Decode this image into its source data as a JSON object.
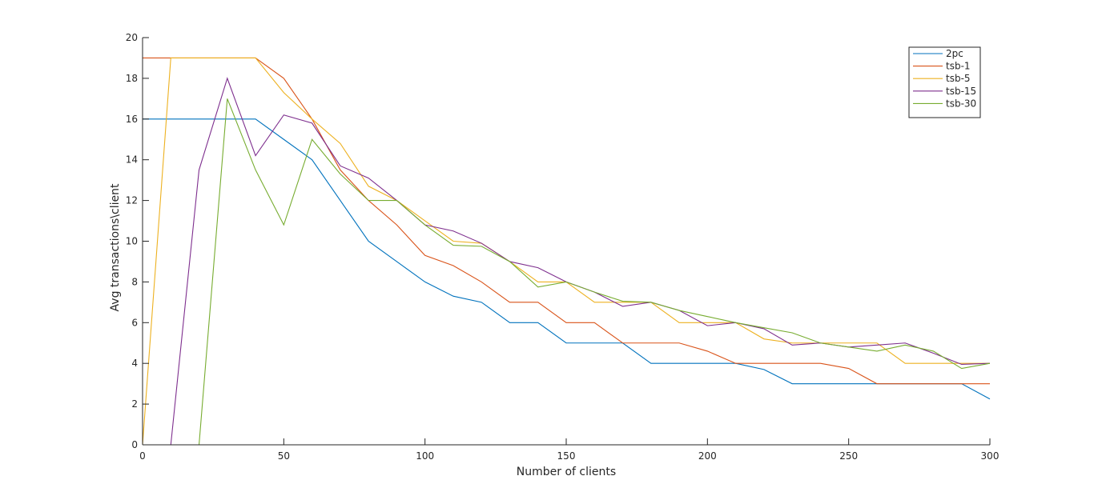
{
  "chart_data": {
    "type": "line",
    "title": "",
    "xlabel": "Number of clients",
    "ylabel": "Avg transactions\\client",
    "xlim": [
      0,
      300
    ],
    "ylim": [
      0,
      20
    ],
    "xticks": [
      0,
      50,
      100,
      150,
      200,
      250,
      300
    ],
    "yticks": [
      0,
      2,
      4,
      6,
      8,
      10,
      12,
      14,
      16,
      18,
      20
    ],
    "grid": false,
    "legend_position": "top-right",
    "x": [
      0,
      10,
      20,
      30,
      40,
      50,
      60,
      70,
      80,
      90,
      100,
      110,
      120,
      130,
      140,
      150,
      160,
      170,
      180,
      190,
      200,
      210,
      220,
      230,
      240,
      250,
      260,
      270,
      280,
      290,
      300
    ],
    "series": [
      {
        "name": "2pc",
        "color": "#0072BD",
        "values": [
          16,
          16,
          16,
          16,
          16,
          15,
          14,
          12,
          10,
          9,
          8,
          7.3,
          7,
          6,
          6,
          5,
          5,
          5,
          4,
          4,
          4,
          4,
          3.7,
          3,
          3,
          3,
          3,
          3,
          3,
          3,
          2.25
        ]
      },
      {
        "name": "tsb-1",
        "color": "#D95319",
        "values": [
          19,
          19,
          19,
          19,
          19,
          18,
          16,
          13.5,
          12,
          10.8,
          9.3,
          8.8,
          8,
          7,
          7,
          6,
          6,
          5,
          5,
          5,
          4.6,
          4,
          4,
          4,
          4,
          3.75,
          3,
          3,
          3,
          3,
          3
        ]
      },
      {
        "name": "tsb-5",
        "color": "#EDB120",
        "values": [
          0,
          19,
          19,
          19,
          19,
          17.3,
          16,
          14.8,
          12.7,
          12,
          11,
          10,
          9.9,
          9,
          8,
          8,
          7,
          7,
          7,
          6,
          6,
          6,
          5.2,
          5,
          5,
          5,
          5,
          4,
          4,
          4,
          4
        ]
      },
      {
        "name": "tsb-15",
        "color": "#7E2F8E",
        "values": [
          0,
          0,
          13.5,
          18,
          14.2,
          16.2,
          15.8,
          13.7,
          13.1,
          12,
          10.8,
          10.5,
          9.9,
          9,
          8.7,
          8,
          7.5,
          6.8,
          7,
          6.6,
          5.85,
          6,
          5.7,
          4.9,
          5,
          4.8,
          4.9,
          5,
          4.5,
          3.95,
          4
        ]
      },
      {
        "name": "tsb-30",
        "color": "#77AC30",
        "values": [
          0,
          0,
          0,
          17,
          13.5,
          10.8,
          15,
          13.3,
          12,
          12,
          10.8,
          9.8,
          9.75,
          9,
          7.75,
          8,
          7.5,
          7.05,
          7,
          6.6,
          6.3,
          6,
          5.75,
          5.5,
          5,
          4.8,
          4.6,
          4.9,
          4.6,
          3.75,
          4
        ]
      }
    ]
  }
}
